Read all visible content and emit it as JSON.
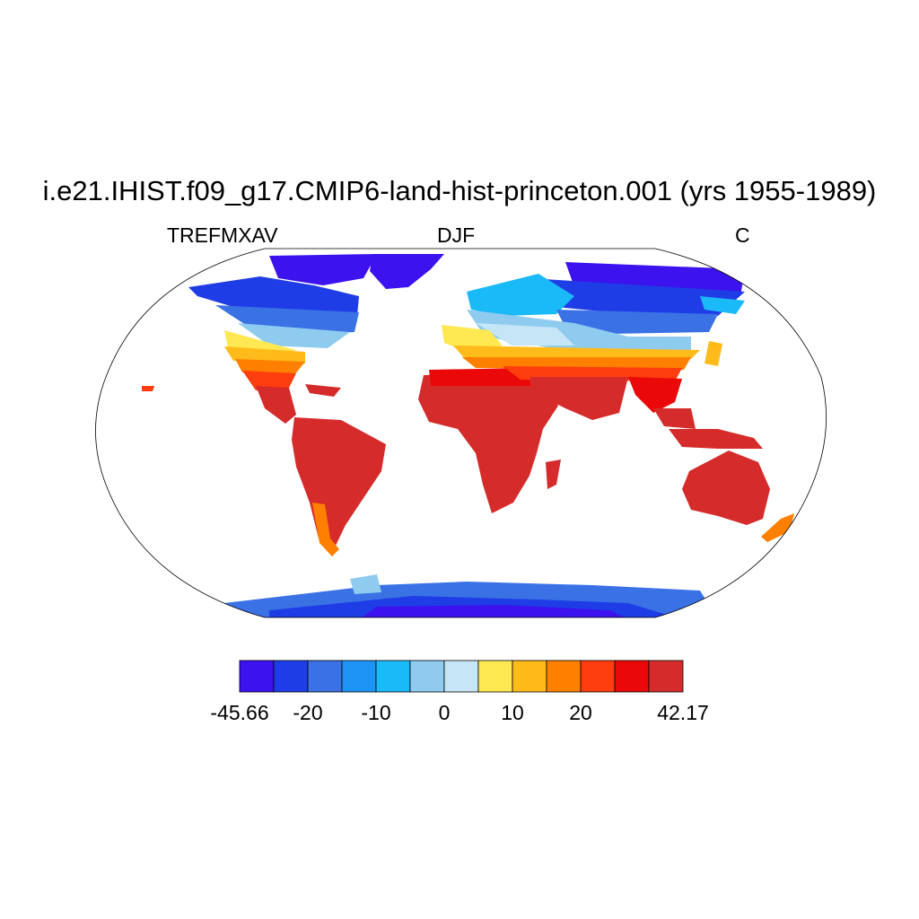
{
  "title": "i.e21.IHIST.f09_g17.CMIP6-land-hist-princeton.001 (yrs 1955-1989)",
  "subtitles": {
    "left": "TREFMXAV",
    "center": "DJF",
    "right": "C"
  },
  "colorbar": {
    "colors": [
      "#3c12ee",
      "#1f3de6",
      "#3a72e6",
      "#1b94f5",
      "#1ab9f7",
      "#8ecbef",
      "#c5e6f7",
      "#ffe852",
      "#ffbb1a",
      "#ff8000",
      "#ff3d0f",
      "#ea0808",
      "#d62b2b"
    ],
    "labels": [
      "-45.66",
      "-20",
      "-10",
      "0",
      "10",
      "20",
      "42.17"
    ]
  },
  "colors": {
    "ocean": "#ffffff",
    "outline": "#000000"
  }
}
